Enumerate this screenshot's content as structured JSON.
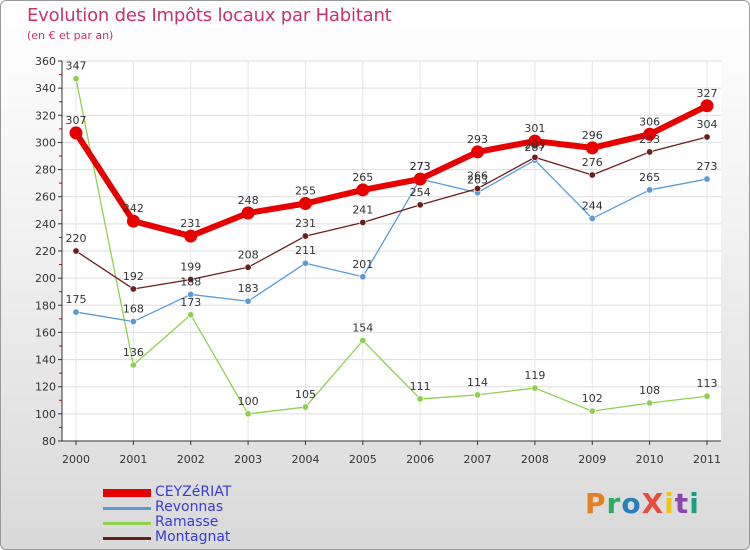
{
  "title": "Evolution des Impôts locaux par Habitant",
  "subtitle": "(en € et par an)",
  "logo": {
    "text": "ProXiti",
    "colors": [
      "#e67e22",
      "#27ae60",
      "#2980b9",
      "#e74c3c",
      "#f1c40f",
      "#8e44ad",
      "#16a085"
    ]
  },
  "chart_data": {
    "type": "line",
    "title": "Evolution des Impôts locaux par Habitant",
    "subtitle": "(en € et par an)",
    "xlabel": "",
    "ylabel": "",
    "ylim": [
      80,
      360
    ],
    "yticks": [
      80,
      100,
      120,
      140,
      160,
      180,
      200,
      220,
      240,
      260,
      280,
      300,
      320,
      340,
      360
    ],
    "x": [
      "2000",
      "2001",
      "2002",
      "2003",
      "2004",
      "2005",
      "2006",
      "2007",
      "2008",
      "2009",
      "2010",
      "2011"
    ],
    "series": [
      {
        "name": "CEYZéRIAT",
        "color": "#e60000",
        "values": [
          307,
          242,
          231,
          248,
          255,
          265,
          273,
          293,
          301,
          296,
          306,
          327
        ]
      },
      {
        "name": "Revonnas",
        "color": "#5b9bd5",
        "values": [
          175,
          168,
          188,
          183,
          211,
          201,
          273,
          263,
          287,
          244,
          265,
          273
        ]
      },
      {
        "name": "Ramasse",
        "color": "#90d050",
        "values": [
          347,
          136,
          173,
          100,
          105,
          154,
          111,
          114,
          119,
          102,
          108,
          113
        ]
      },
      {
        "name": "Montagnat",
        "color": "#6b1e1e",
        "values": [
          220,
          192,
          199,
          208,
          231,
          241,
          254,
          266,
          289,
          276,
          293,
          304
        ]
      }
    ]
  }
}
